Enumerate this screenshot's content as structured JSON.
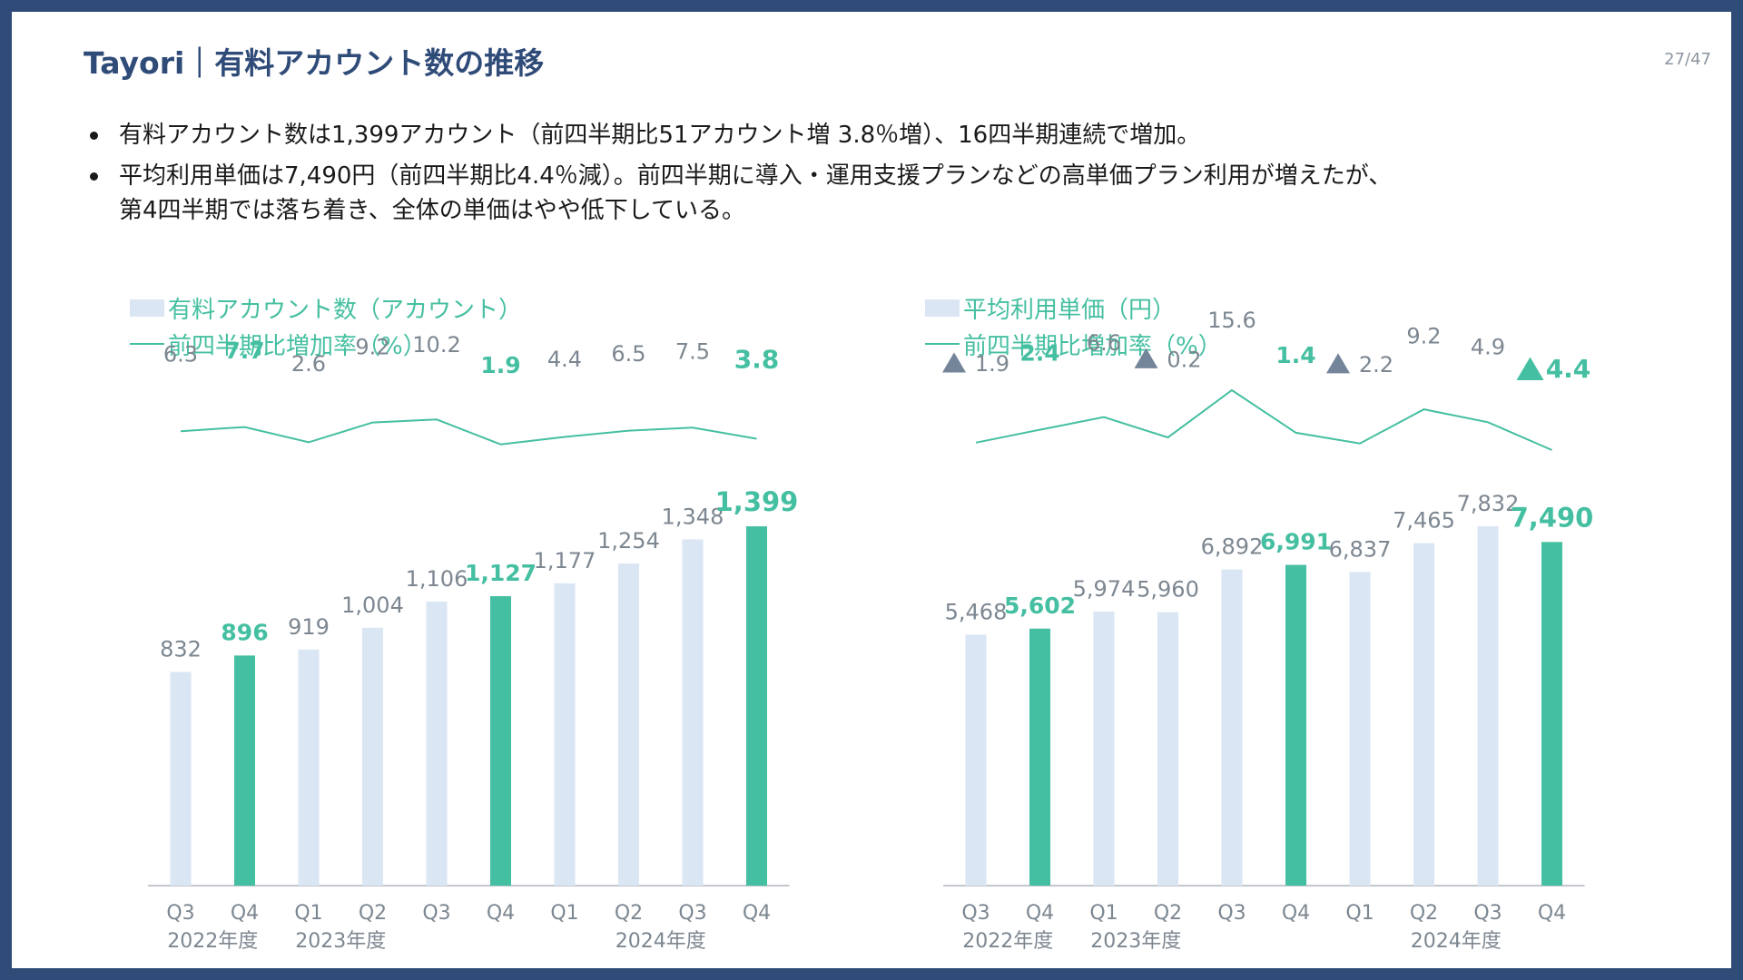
{
  "header": {
    "title": "Tayori｜有料アカウント数の推移",
    "page_number": "27/47"
  },
  "bullets": [
    "有料アカウント数は1,399アカウント（前四半期比51アカウント増 3.8％増）、16四半期連続で増加。",
    "平均利用単価は7,490円（前四半期比4.4％減）。前四半期に導入・運用支援プランなどの高単価プラン利用が増えたが、\n第4四半期では落ち着き、全体の単価はやや低下している。"
  ],
  "colors": {
    "bar_normal": "#dae6f4",
    "bar_highlight": "#45bfa1",
    "line": "#45bfa1",
    "label_normal": "#7d8791",
    "label_highlight": "#45bfa1",
    "triangle_gray": "#74859a",
    "axis": "#b0b6bd",
    "title": "#2f4b78"
  },
  "chart_data": [
    {
      "type": "bar",
      "legend": {
        "bar_label": "有料アカウント数（アカウント）",
        "line_label": "前四半期比増加率（%）"
      },
      "categories": [
        "Q3",
        "Q4",
        "Q1",
        "Q2",
        "Q3",
        "Q4",
        "Q1",
        "Q2",
        "Q3",
        "Q4"
      ],
      "year_labels": [
        {
          "label": "2022年度",
          "start": 0,
          "end": 1
        },
        {
          "label": "2023年度",
          "start": 2,
          "end": 3
        },
        {
          "label": "2024年度",
          "start": 6,
          "end": 9
        }
      ],
      "bar_values": [
        832,
        896,
        919,
        1004,
        1106,
        1127,
        1177,
        1254,
        1348,
        1399
      ],
      "bar_labels": [
        "832",
        "896",
        "919",
        "1,004",
        "1,106",
        "1,127",
        "1,177",
        "1,254",
        "1,348",
        "1,399"
      ],
      "highlight": [
        false,
        true,
        false,
        false,
        false,
        true,
        false,
        false,
        false,
        true
      ],
      "line_values": [
        6.3,
        7.7,
        2.6,
        9.2,
        10.2,
        1.9,
        4.4,
        6.5,
        7.5,
        3.8
      ],
      "line_labels": [
        "6.3",
        "7.7",
        "2.6",
        "9.2",
        "10.2",
        "1.9",
        "4.4",
        "6.5",
        "7.5",
        "3.8"
      ],
      "line_negative": [
        false,
        false,
        false,
        false,
        false,
        false,
        false,
        false,
        false,
        false
      ],
      "ylim": [
        0,
        1399
      ],
      "line_ylim": [
        0,
        20
      ]
    },
    {
      "type": "bar",
      "legend": {
        "bar_label": "平均利用単価（円）",
        "line_label": "前四半期比増加率（%）"
      },
      "categories": [
        "Q3",
        "Q4",
        "Q1",
        "Q2",
        "Q3",
        "Q4",
        "Q1",
        "Q2",
        "Q3",
        "Q4"
      ],
      "year_labels": [
        {
          "label": "2022年度",
          "start": 0,
          "end": 1
        },
        {
          "label": "2023年度",
          "start": 2,
          "end": 3
        },
        {
          "label": "2024年度",
          "start": 6,
          "end": 9
        }
      ],
      "bar_values": [
        5468,
        5602,
        5974,
        5960,
        6892,
        6991,
        6837,
        7465,
        7832,
        7490
      ],
      "bar_labels": [
        "5,468",
        "5,602",
        "5,974",
        "5,960",
        "6,892",
        "6,991",
        "6,837",
        "7,465",
        "7,832",
        "7,490"
      ],
      "highlight": [
        false,
        true,
        false,
        false,
        false,
        true,
        false,
        false,
        false,
        true
      ],
      "line_values": [
        -1.9,
        2.4,
        6.6,
        -0.2,
        15.6,
        1.4,
        -2.2,
        9.2,
        4.9,
        -4.4
      ],
      "line_labels": [
        "1.9",
        "2.4",
        "6.6",
        "0.2",
        "15.6",
        "1.4",
        "2.2",
        "9.2",
        "4.9",
        "4.4"
      ],
      "line_negative": [
        true,
        false,
        false,
        true,
        false,
        false,
        true,
        false,
        false,
        true
      ],
      "ylim": [
        0,
        7832
      ],
      "line_ylim": [
        -4.4,
        15.6
      ]
    }
  ]
}
